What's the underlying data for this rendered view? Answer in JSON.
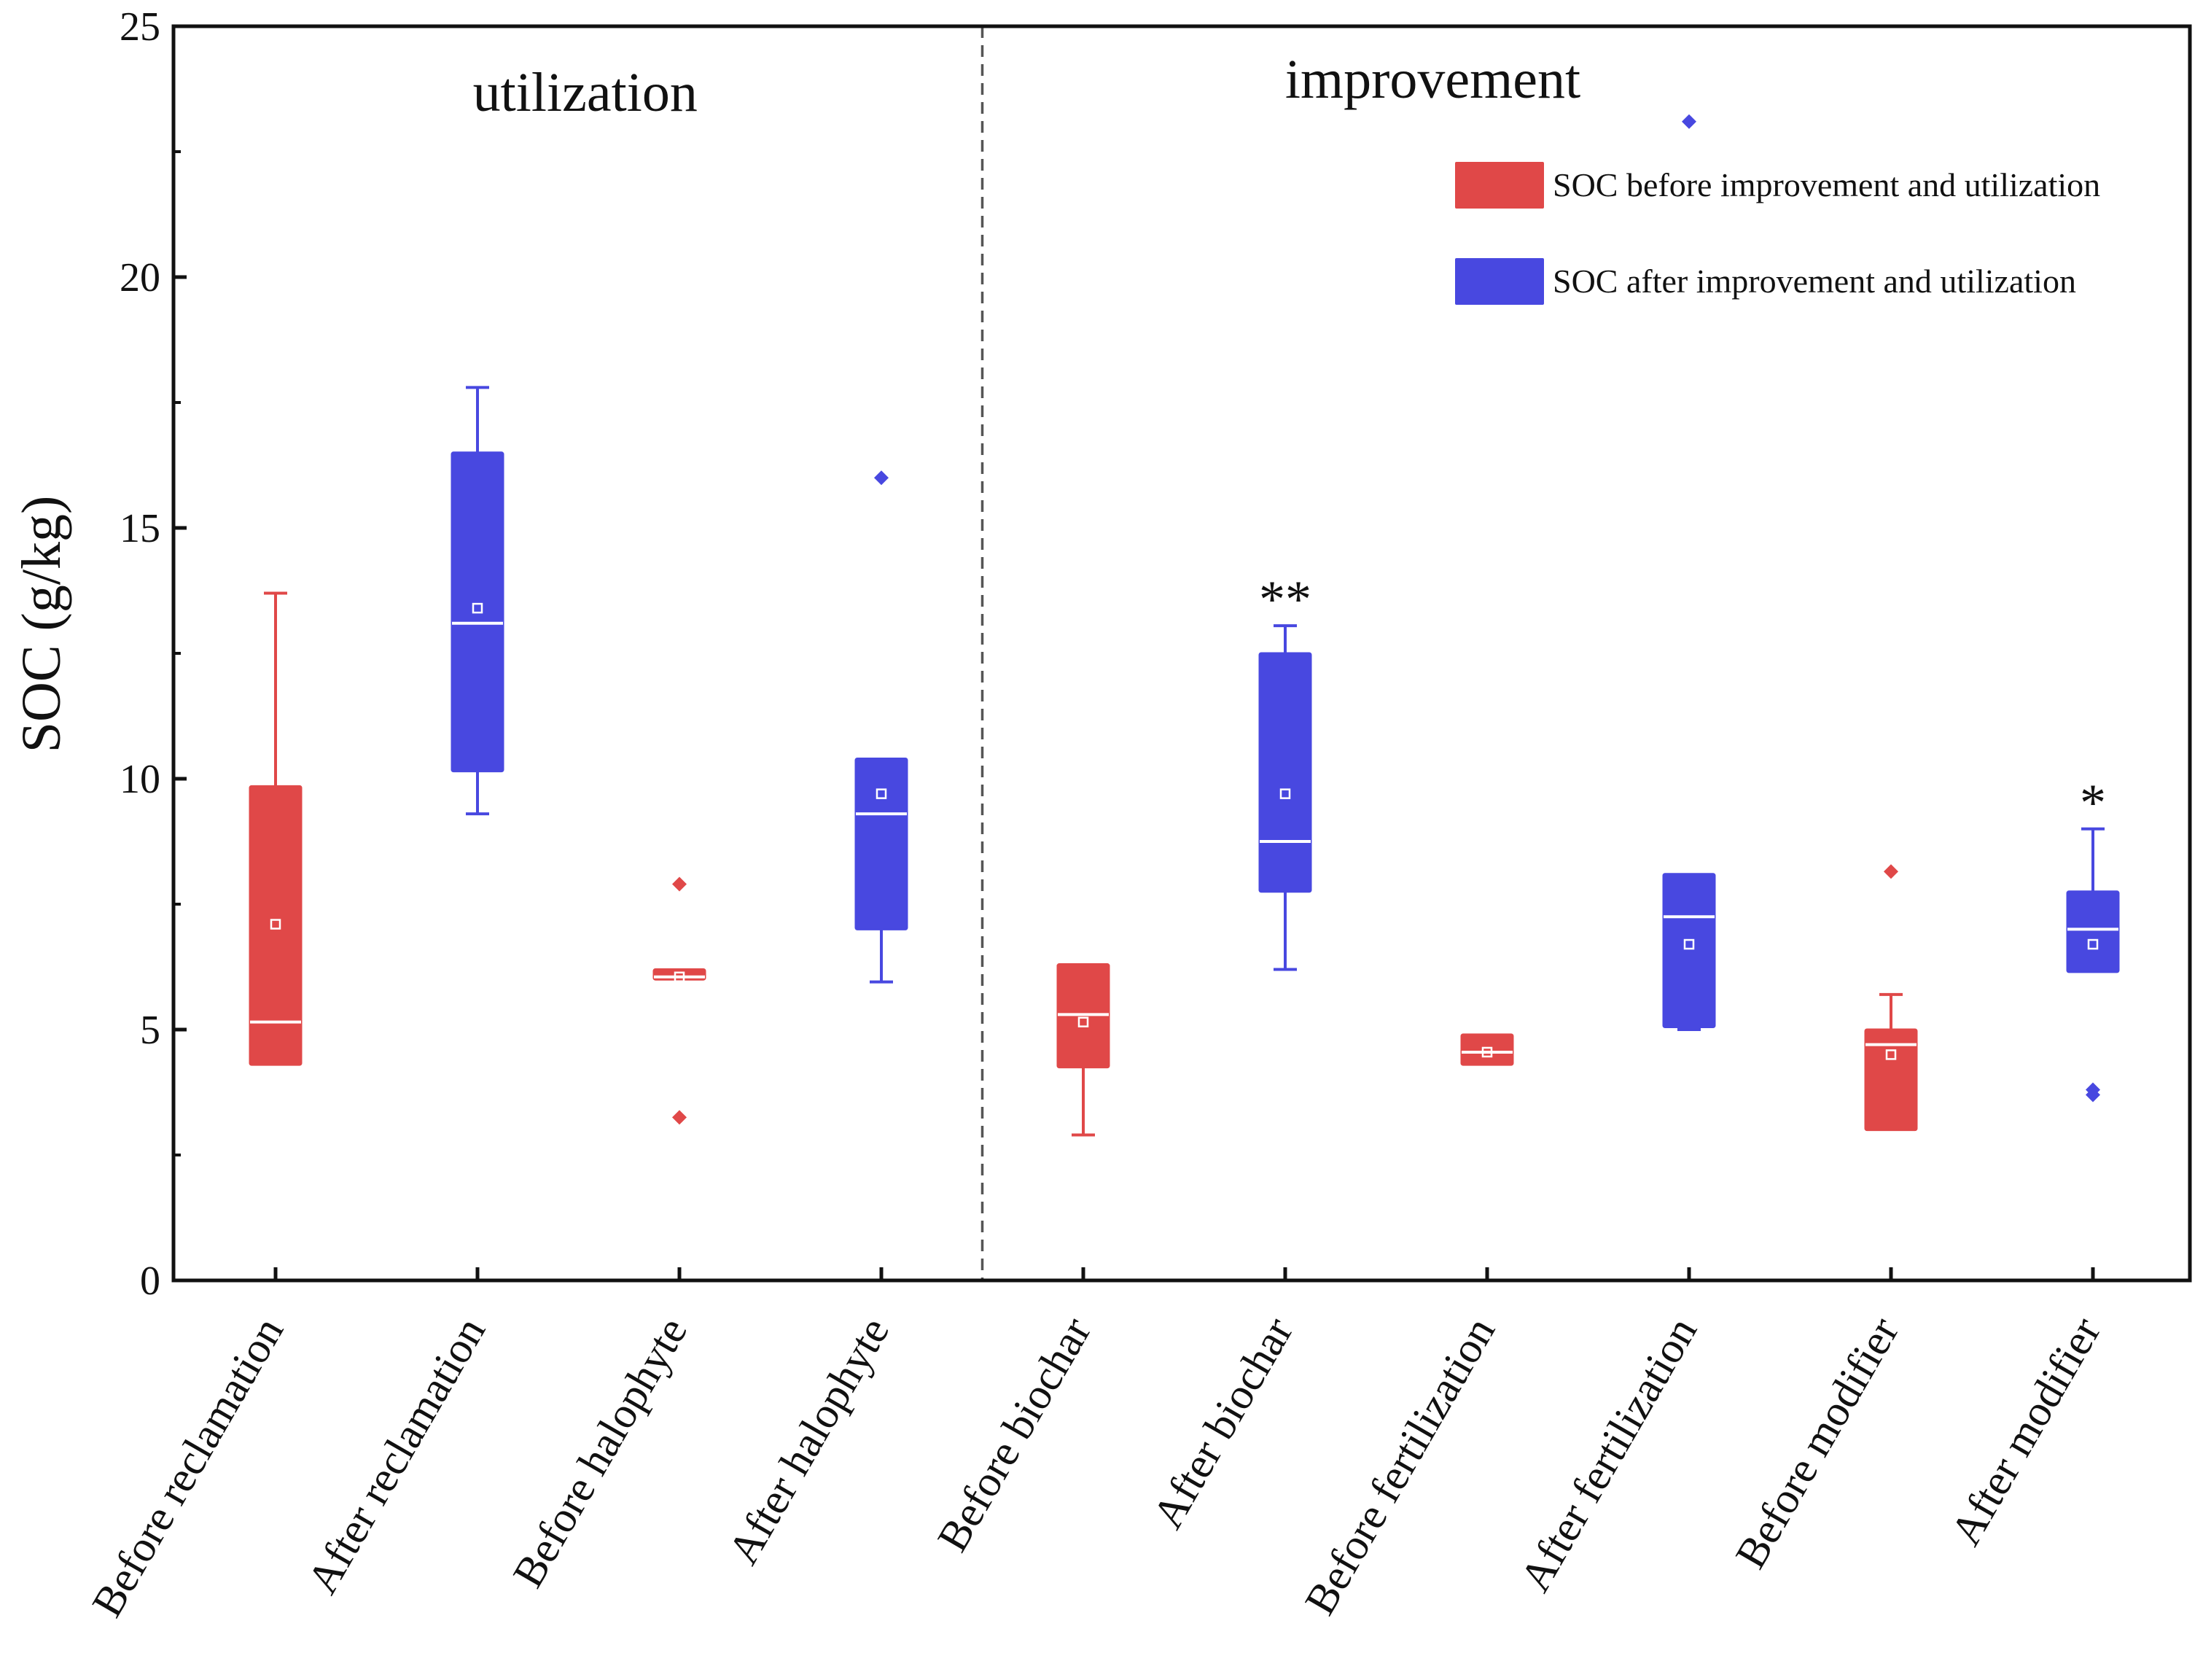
{
  "chart_data": {
    "type": "box",
    "title": "",
    "xlabel": "",
    "ylabel": "SOC (g/kg)",
    "ylim": [
      0,
      25
    ],
    "yticks": [
      0,
      5,
      10,
      15,
      20,
      25
    ],
    "groups": [
      {
        "label": "utilization",
        "categories": [
          0,
          1,
          2,
          3
        ]
      },
      {
        "label": "improvement",
        "categories": [
          4,
          5,
          6,
          7,
          8,
          9
        ]
      }
    ],
    "colors": {
      "before": "#e04848",
      "after": "#4848e0"
    },
    "legend": [
      {
        "label": "SOC before improvement and utilization",
        "series": "before"
      },
      {
        "label": "SOC after improvement and utilization",
        "series": "after"
      }
    ],
    "boxes": [
      {
        "category": "Before reclamation",
        "series": "before",
        "whisker_low": 4.3,
        "q1": 4.3,
        "median": 5.15,
        "q3": 9.85,
        "whisker_high": 13.7,
        "mean": 7.1,
        "outliers": [],
        "sig": ""
      },
      {
        "category": "After reclamation",
        "series": "after",
        "whisker_low": 9.3,
        "q1": 10.15,
        "median": 13.1,
        "q3": 16.5,
        "whisker_high": 17.8,
        "mean": 13.4,
        "outliers": [],
        "sig": ""
      },
      {
        "category": "Before halophyte",
        "series": "before",
        "whisker_low": 6.0,
        "q1": 6.0,
        "median": 6.05,
        "q3": 6.2,
        "whisker_high": 6.2,
        "mean": 6.05,
        "outliers": [
          7.9,
          3.25
        ],
        "sig": ""
      },
      {
        "category": "After halophyte",
        "series": "after",
        "whisker_low": 5.95,
        "q1": 7.0,
        "median": 9.3,
        "q3": 10.4,
        "whisker_high": 10.4,
        "mean": 9.7,
        "outliers": [
          16.0
        ],
        "sig": ""
      },
      {
        "category": "Before biochar",
        "series": "before",
        "whisker_low": 2.9,
        "q1": 4.25,
        "median": 5.3,
        "q3": 6.3,
        "whisker_high": 6.3,
        "mean": 5.15,
        "outliers": [],
        "sig": ""
      },
      {
        "category": "After biochar",
        "series": "after",
        "whisker_low": 6.2,
        "q1": 7.75,
        "median": 8.75,
        "q3": 12.5,
        "whisker_high": 13.05,
        "mean": 9.7,
        "outliers": [],
        "sig": "**"
      },
      {
        "category": "Before fertilization",
        "series": "before",
        "whisker_low": 4.3,
        "q1": 4.3,
        "median": 4.55,
        "q3": 4.9,
        "whisker_high": 4.9,
        "mean": 4.55,
        "outliers": [],
        "sig": ""
      },
      {
        "category": "After fertilization",
        "series": "after",
        "whisker_low": 5.0,
        "q1": 5.05,
        "median": 7.25,
        "q3": 8.1,
        "whisker_high": 8.1,
        "mean": 6.7,
        "outliers": [
          23.1
        ],
        "sig": ""
      },
      {
        "category": "Before modifier",
        "series": "before",
        "whisker_low": 3.0,
        "q1": 3.0,
        "median": 4.7,
        "q3": 5.0,
        "whisker_high": 5.7,
        "mean": 4.5,
        "outliers": [
          8.15
        ],
        "sig": ""
      },
      {
        "category": "After modifier",
        "series": "after",
        "whisker_low": 6.15,
        "q1": 6.15,
        "median": 7.0,
        "q3": 7.75,
        "whisker_high": 9.0,
        "mean": 6.7,
        "outliers": [
          3.7,
          3.8
        ],
        "sig": "*"
      }
    ]
  }
}
